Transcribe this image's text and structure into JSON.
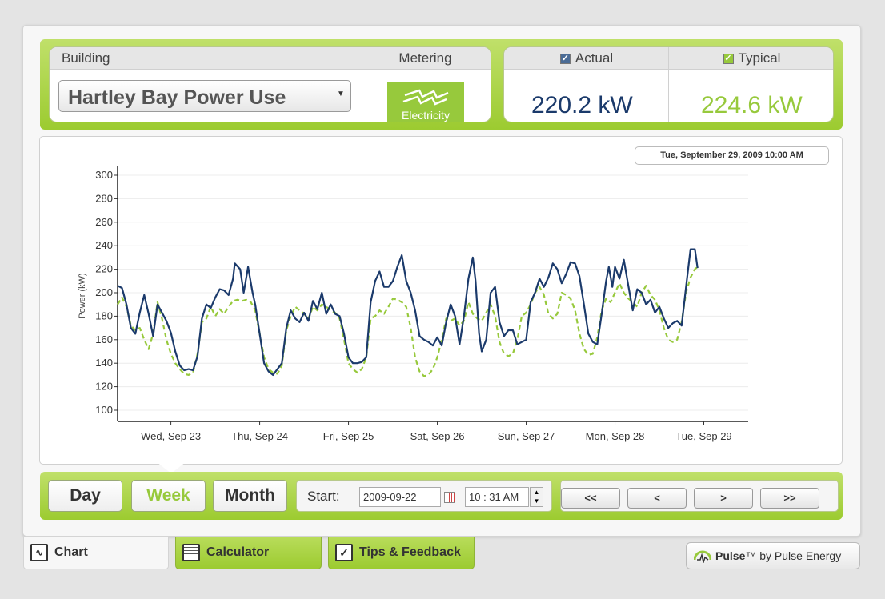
{
  "header": {
    "building_label": "Building",
    "building_value": "Hartley Bay Power Use",
    "metering_label": "Metering",
    "metering_value": "Electricity",
    "actual_label": "Actual",
    "actual_value": "220.2 kW",
    "typical_label": "Typical",
    "typical_value": "224.6 kW",
    "actual_color": "#1b3a6b",
    "typical_color": "#97c93c"
  },
  "chart": {
    "timestamp": "Tue, September 29, 2009 10:00 AM"
  },
  "chart_data": {
    "type": "line",
    "ylabel": "Power (kW)",
    "ylim": [
      100,
      300
    ],
    "yticks": [
      100,
      120,
      140,
      160,
      180,
      200,
      220,
      240,
      260,
      280,
      300
    ],
    "x_tick_labels": [
      "Wed, Sep 23",
      "Thu, Sep 24",
      "Fri, Sep 25",
      "Sat, Sep 26",
      "Sun, Sep 27",
      "Mon, Sep 28",
      "Tue, Sep 29"
    ],
    "x_range_days": [
      -0.6,
      6.5
    ],
    "grid": true,
    "series": [
      {
        "name": "Actual",
        "color": "#1b3a6b",
        "style": "solid",
        "points": [
          [
            -0.6,
            206
          ],
          [
            -0.55,
            204
          ],
          [
            -0.5,
            190
          ],
          [
            -0.45,
            170
          ],
          [
            -0.4,
            165
          ],
          [
            -0.35,
            183
          ],
          [
            -0.3,
            198
          ],
          [
            -0.25,
            182
          ],
          [
            -0.2,
            163
          ],
          [
            -0.15,
            190
          ],
          [
            -0.1,
            183
          ],
          [
            -0.05,
            176
          ],
          [
            0,
            166
          ],
          [
            0.05,
            150
          ],
          [
            0.1,
            138
          ],
          [
            0.15,
            134
          ],
          [
            0.2,
            135
          ],
          [
            0.25,
            134
          ],
          [
            0.3,
            146
          ],
          [
            0.35,
            178
          ],
          [
            0.4,
            190
          ],
          [
            0.45,
            187
          ],
          [
            0.5,
            196
          ],
          [
            0.55,
            203
          ],
          [
            0.6,
            202
          ],
          [
            0.65,
            198
          ],
          [
            0.7,
            212
          ],
          [
            0.72,
            225
          ],
          [
            0.78,
            220
          ],
          [
            0.82,
            200
          ],
          [
            0.87,
            222
          ],
          [
            0.92,
            200
          ],
          [
            0.95,
            190
          ],
          [
            1.0,
            165
          ],
          [
            1.05,
            140
          ],
          [
            1.1,
            133
          ],
          [
            1.15,
            130
          ],
          [
            1.2,
            135
          ],
          [
            1.25,
            140
          ],
          [
            1.3,
            170
          ],
          [
            1.35,
            185
          ],
          [
            1.4,
            178
          ],
          [
            1.45,
            175
          ],
          [
            1.5,
            183
          ],
          [
            1.55,
            176
          ],
          [
            1.6,
            193
          ],
          [
            1.65,
            186
          ],
          [
            1.7,
            200
          ],
          [
            1.75,
            182
          ],
          [
            1.8,
            190
          ],
          [
            1.85,
            182
          ],
          [
            1.9,
            180
          ],
          [
            1.95,
            165
          ],
          [
            2.0,
            145
          ],
          [
            2.05,
            140
          ],
          [
            2.1,
            140
          ],
          [
            2.15,
            141
          ],
          [
            2.2,
            145
          ],
          [
            2.25,
            192
          ],
          [
            2.3,
            210
          ],
          [
            2.35,
            218
          ],
          [
            2.4,
            205
          ],
          [
            2.45,
            205
          ],
          [
            2.5,
            210
          ],
          [
            2.55,
            222
          ],
          [
            2.6,
            232
          ],
          [
            2.65,
            210
          ],
          [
            2.7,
            200
          ],
          [
            2.75,
            185
          ],
          [
            2.8,
            163
          ],
          [
            2.85,
            160
          ],
          [
            2.9,
            158
          ],
          [
            2.95,
            155
          ],
          [
            3.0,
            162
          ],
          [
            3.05,
            155
          ],
          [
            3.1,
            175
          ],
          [
            3.15,
            190
          ],
          [
            3.2,
            180
          ],
          [
            3.25,
            156
          ],
          [
            3.3,
            180
          ],
          [
            3.35,
            212
          ],
          [
            3.4,
            230
          ],
          [
            3.43,
            210
          ],
          [
            3.47,
            165
          ],
          [
            3.5,
            150
          ],
          [
            3.55,
            160
          ],
          [
            3.6,
            200
          ],
          [
            3.65,
            205
          ],
          [
            3.7,
            175
          ],
          [
            3.75,
            163
          ],
          [
            3.8,
            168
          ],
          [
            3.85,
            168
          ],
          [
            3.9,
            156
          ],
          [
            3.95,
            158
          ],
          [
            4.0,
            160
          ],
          [
            4.05,
            192
          ],
          [
            4.1,
            200
          ],
          [
            4.15,
            212
          ],
          [
            4.2,
            205
          ],
          [
            4.25,
            213
          ],
          [
            4.3,
            225
          ],
          [
            4.35,
            220
          ],
          [
            4.4,
            208
          ],
          [
            4.45,
            216
          ],
          [
            4.5,
            226
          ],
          [
            4.55,
            225
          ],
          [
            4.6,
            214
          ],
          [
            4.65,
            190
          ],
          [
            4.7,
            165
          ],
          [
            4.75,
            158
          ],
          [
            4.8,
            156
          ],
          [
            4.85,
            182
          ],
          [
            4.9,
            210
          ],
          [
            4.93,
            222
          ],
          [
            4.97,
            205
          ],
          [
            5.0,
            222
          ],
          [
            5.05,
            212
          ],
          [
            5.1,
            228
          ],
          [
            5.15,
            206
          ],
          [
            5.2,
            185
          ],
          [
            5.25,
            203
          ],
          [
            5.3,
            200
          ],
          [
            5.35,
            190
          ],
          [
            5.4,
            194
          ],
          [
            5.45,
            183
          ],
          [
            5.5,
            188
          ],
          [
            5.55,
            178
          ],
          [
            5.6,
            170
          ],
          [
            5.65,
            174
          ],
          [
            5.7,
            176
          ],
          [
            5.75,
            172
          ],
          [
            5.8,
            205
          ],
          [
            5.85,
            237
          ],
          [
            5.9,
            237
          ],
          [
            5.93,
            221
          ]
        ]
      },
      {
        "name": "Typical",
        "color": "#97c93c",
        "style": "dashed",
        "points": [
          [
            -0.6,
            190
          ],
          [
            -0.55,
            196
          ],
          [
            -0.5,
            188
          ],
          [
            -0.45,
            172
          ],
          [
            -0.4,
            168
          ],
          [
            -0.35,
            170
          ],
          [
            -0.3,
            160
          ],
          [
            -0.25,
            152
          ],
          [
            -0.2,
            165
          ],
          [
            -0.15,
            192
          ],
          [
            -0.1,
            178
          ],
          [
            -0.05,
            160
          ],
          [
            0,
            148
          ],
          [
            0.05,
            140
          ],
          [
            0.1,
            135
          ],
          [
            0.15,
            131
          ],
          [
            0.2,
            130
          ],
          [
            0.25,
            132
          ],
          [
            0.3,
            148
          ],
          [
            0.35,
            175
          ],
          [
            0.4,
            178
          ],
          [
            0.45,
            188
          ],
          [
            0.5,
            180
          ],
          [
            0.55,
            186
          ],
          [
            0.6,
            182
          ],
          [
            0.65,
            188
          ],
          [
            0.7,
            193
          ],
          [
            0.75,
            194
          ],
          [
            0.8,
            193
          ],
          [
            0.85,
            194
          ],
          [
            0.9,
            192
          ],
          [
            0.95,
            185
          ],
          [
            1.0,
            165
          ],
          [
            1.05,
            145
          ],
          [
            1.1,
            135
          ],
          [
            1.15,
            132
          ],
          [
            1.2,
            131
          ],
          [
            1.25,
            138
          ],
          [
            1.3,
            168
          ],
          [
            1.35,
            180
          ],
          [
            1.4,
            188
          ],
          [
            1.45,
            185
          ],
          [
            1.5,
            182
          ],
          [
            1.55,
            178
          ],
          [
            1.6,
            188
          ],
          [
            1.65,
            185
          ],
          [
            1.7,
            190
          ],
          [
            1.75,
            188
          ],
          [
            1.8,
            185
          ],
          [
            1.85,
            183
          ],
          [
            1.9,
            178
          ],
          [
            1.95,
            160
          ],
          [
            2.0,
            140
          ],
          [
            2.05,
            135
          ],
          [
            2.1,
            132
          ],
          [
            2.15,
            135
          ],
          [
            2.2,
            145
          ],
          [
            2.25,
            178
          ],
          [
            2.3,
            180
          ],
          [
            2.35,
            185
          ],
          [
            2.4,
            182
          ],
          [
            2.45,
            188
          ],
          [
            2.5,
            195
          ],
          [
            2.55,
            194
          ],
          [
            2.6,
            192
          ],
          [
            2.65,
            188
          ],
          [
            2.7,
            170
          ],
          [
            2.75,
            145
          ],
          [
            2.8,
            133
          ],
          [
            2.85,
            129
          ],
          [
            2.9,
            130
          ],
          [
            2.95,
            135
          ],
          [
            3.0,
            145
          ],
          [
            3.05,
            160
          ],
          [
            3.1,
            178
          ],
          [
            3.15,
            176
          ],
          [
            3.2,
            178
          ],
          [
            3.25,
            172
          ],
          [
            3.3,
            176
          ],
          [
            3.35,
            192
          ],
          [
            3.4,
            182
          ],
          [
            3.45,
            178
          ],
          [
            3.5,
            176
          ],
          [
            3.55,
            183
          ],
          [
            3.6,
            190
          ],
          [
            3.65,
            180
          ],
          [
            3.7,
            158
          ],
          [
            3.75,
            148
          ],
          [
            3.8,
            146
          ],
          [
            3.85,
            148
          ],
          [
            3.9,
            160
          ],
          [
            3.95,
            180
          ],
          [
            4.0,
            183
          ],
          [
            4.05,
            190
          ],
          [
            4.1,
            200
          ],
          [
            4.15,
            205
          ],
          [
            4.2,
            198
          ],
          [
            4.25,
            182
          ],
          [
            4.3,
            178
          ],
          [
            4.35,
            182
          ],
          [
            4.4,
            200
          ],
          [
            4.45,
            198
          ],
          [
            4.5,
            195
          ],
          [
            4.55,
            185
          ],
          [
            4.6,
            165
          ],
          [
            4.65,
            152
          ],
          [
            4.7,
            147
          ],
          [
            4.75,
            148
          ],
          [
            4.8,
            162
          ],
          [
            4.85,
            185
          ],
          [
            4.9,
            195
          ],
          [
            4.95,
            192
          ],
          [
            5.0,
            200
          ],
          [
            5.05,
            208
          ],
          [
            5.1,
            200
          ],
          [
            5.15,
            195
          ],
          [
            5.2,
            192
          ],
          [
            5.25,
            188
          ],
          [
            5.3,
            200
          ],
          [
            5.35,
            206
          ],
          [
            5.4,
            198
          ],
          [
            5.45,
            194
          ],
          [
            5.5,
            185
          ],
          [
            5.55,
            170
          ],
          [
            5.6,
            160
          ],
          [
            5.65,
            158
          ],
          [
            5.7,
            160
          ],
          [
            5.75,
            175
          ],
          [
            5.8,
            200
          ],
          [
            5.85,
            213
          ],
          [
            5.9,
            220
          ],
          [
            5.93,
            222
          ]
        ]
      }
    ]
  },
  "controls": {
    "day": "Day",
    "week": "Week",
    "month": "Month",
    "start_label": "Start:",
    "start_date": "2009-09-22",
    "start_time": "10 : 31 AM",
    "first": "<<",
    "prev": "<",
    "next": ">",
    "last": ">>"
  },
  "footer": {
    "chart_tab": "Chart",
    "calculator_tab": "Calculator",
    "tips_tab": "Tips & Feedback",
    "pulse_brand": "Pulse",
    "pulse_tm": "™",
    "pulse_by": " by Pulse Energy"
  }
}
